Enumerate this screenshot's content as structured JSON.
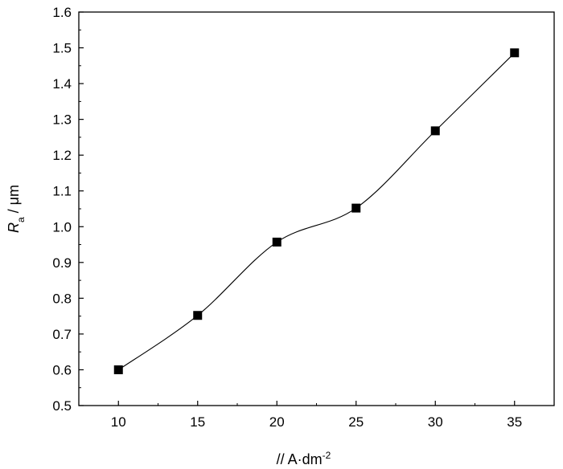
{
  "chart_data": {
    "type": "scatter",
    "title": "",
    "xlabel": {
      "prefix": "/",
      "unit_base": "/ A·dm",
      "unit_exp": "-2"
    },
    "ylabel": {
      "symbol": "R",
      "subscript": "a",
      "unit": " / μm"
    },
    "xlim": [
      7.5,
      37.5
    ],
    "ylim": [
      0.5,
      1.6
    ],
    "xticks": [
      10,
      15,
      20,
      25,
      30,
      35
    ],
    "yticks": [
      0.5,
      0.6,
      0.7,
      0.8,
      0.9,
      1.0,
      1.1,
      1.2,
      1.3,
      1.4,
      1.5,
      1.6
    ],
    "ytick_labels": [
      "0.5",
      "0.6",
      "0.7",
      "0.8",
      "0.9",
      "1.0",
      "1.1",
      "1.2",
      "1.3",
      "1.4",
      "1.5",
      "1.6"
    ],
    "series": [
      {
        "marker": "square",
        "color": "#000000",
        "fit_line": "smooth",
        "x": [
          10,
          15,
          20,
          25,
          30,
          35
        ],
        "y": [
          0.6,
          0.752,
          0.957,
          1.052,
          1.268,
          1.486
        ]
      }
    ],
    "grid": false,
    "legend": "none"
  }
}
